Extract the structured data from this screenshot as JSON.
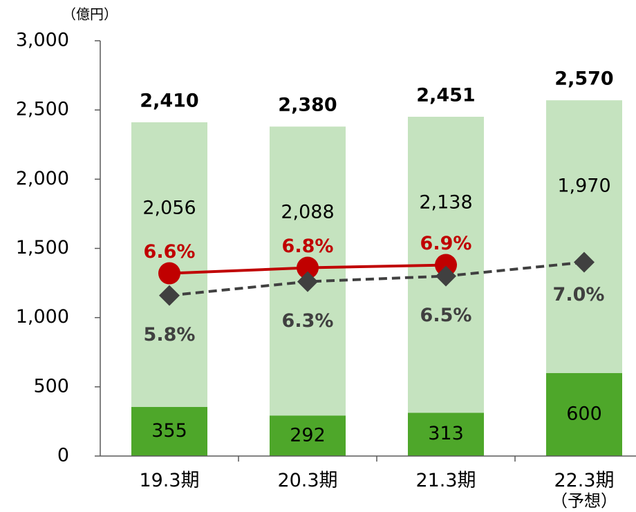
{
  "chart_data": {
    "type": "bar",
    "y_axis_label": "（億円）",
    "categories": [
      "19.3期",
      "20.3期",
      "21.3期",
      "22.3期\n（予想）"
    ],
    "stacked": true,
    "series": [
      {
        "color": "#4ea72a",
        "values": [
          355,
          292,
          313,
          600
        ],
        "value_labels": [
          "355",
          "292",
          "313",
          "600"
        ]
      },
      {
        "color": "#c5e3bf",
        "values": [
          2056,
          2088,
          2138,
          1970
        ],
        "value_labels": [
          "2,056",
          "2,088",
          "2,138",
          "1,970"
        ]
      }
    ],
    "totals": {
      "values": [
        2410,
        2380,
        2451,
        2570
      ],
      "value_labels": [
        "2,410",
        "2,380",
        "2,451",
        "2,570"
      ]
    },
    "lines": [
      {
        "type": "line",
        "axis": "y2",
        "color": "#c00000",
        "dashed": false,
        "marker": "circle",
        "values": [
          6.6,
          6.8,
          6.9,
          null
        ],
        "value_labels": [
          "6.6%",
          "6.8%",
          "6.9%",
          null
        ]
      },
      {
        "type": "line",
        "axis": "y2",
        "color": "#404040",
        "dashed": true,
        "marker": "diamond",
        "values": [
          5.8,
          6.3,
          6.5,
          7.0
        ],
        "value_labels": [
          "5.8%",
          "6.3%",
          "6.5%",
          "7.0%"
        ]
      }
    ],
    "ylim": [
      0,
      3000
    ],
    "yticks": [
      0,
      {
        "value": 500,
        "label": "500"
      },
      {
        "value": 1000,
        "label": "1,000"
      },
      {
        "value": 1500,
        "label": "1,500"
      },
      {
        "value": 2000,
        "label": "2,000"
      },
      {
        "value": 2500,
        "label": "2,500"
      },
      {
        "value": 3000,
        "label": "3,000"
      }
    ],
    "y2lim": [
      0,
      15
    ]
  }
}
